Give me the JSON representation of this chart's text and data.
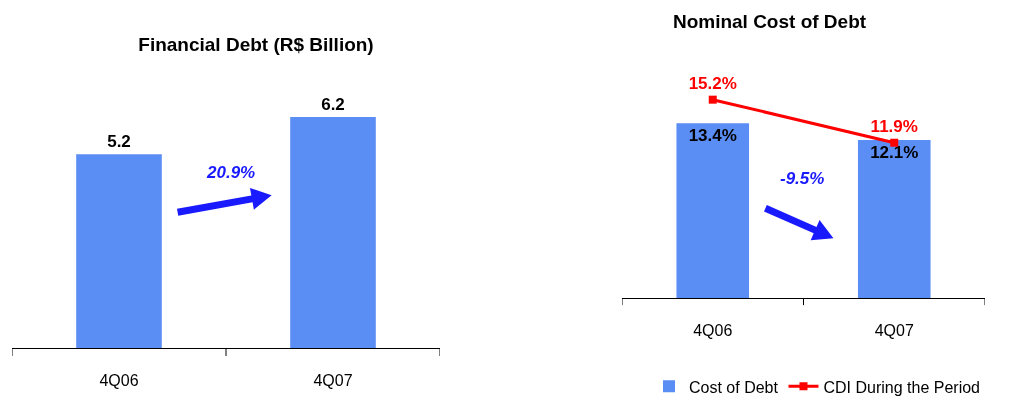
{
  "chart_data": [
    {
      "type": "bar",
      "title": "Financial Debt (R$ Billion)",
      "categories": [
        "4Q06",
        "4Q07"
      ],
      "values": [
        5.2,
        6.2
      ],
      "color": "#5b8ef5",
      "data_labels": true,
      "annotations": [
        "20.9%"
      ]
    },
    {
      "type": "bar",
      "title": "Nominal Cost of Debt",
      "categories": [
        "4Q06",
        "4Q07"
      ],
      "series": [
        {
          "name": "Cost of Debt",
          "color": "#5b8ef5",
          "values": [
            13.4,
            12.1
          ],
          "value_labels": [
            "13.4%",
            "12.1%"
          ]
        },
        {
          "name": "CDI During the Period",
          "type": "line",
          "color": "#ff0000",
          "values": [
            15.2,
            11.9
          ],
          "value_labels": [
            "15.2%",
            "11.9%"
          ]
        }
      ],
      "marker": "square",
      "legend": "bottom",
      "annotations": [
        "-9.5%"
      ]
    }
  ]
}
